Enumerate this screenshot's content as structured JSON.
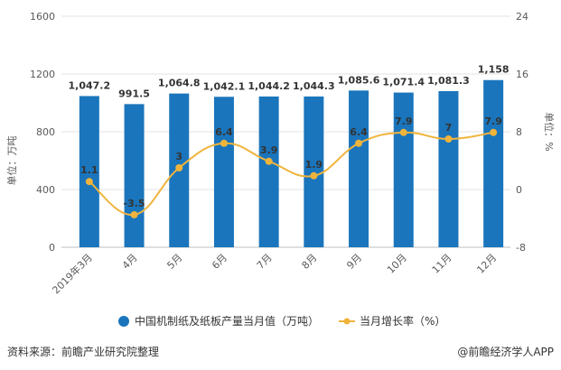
{
  "chart_data": {
    "type": "bar+line",
    "categories": [
      "2019年3月",
      "4月",
      "5月",
      "6月",
      "7月",
      "8月",
      "9月",
      "10月",
      "11月",
      "12月"
    ],
    "series": [
      {
        "name": "中国机制纸及纸板产量当月值（万吨）",
        "type": "bar",
        "axis": "left",
        "color": "#1a75bc",
        "values": [
          1047.2,
          991.5,
          1064.8,
          1042.1,
          1044.2,
          1044.3,
          1085.6,
          1071.4,
          1081.3,
          1158
        ],
        "labels": [
          "1,047.2",
          "991.5",
          "1,064.8",
          "1,042.1",
          "1,044.2",
          "1,044.3",
          "1,085.6",
          "1,071.4",
          "1,081.3",
          "1,158"
        ]
      },
      {
        "name": "当月增长率（%）",
        "type": "line",
        "axis": "right",
        "color": "#f0b43c",
        "values": [
          1.1,
          -3.5,
          3,
          6.4,
          3.9,
          1.9,
          6.4,
          7.9,
          7,
          7.9
        ],
        "labels": [
          "1.1",
          "-3.5",
          "3",
          "6.4",
          "3.9",
          "1.9",
          "6.4",
          "7.9",
          "7",
          "7.9"
        ]
      }
    ],
    "ylabel": "单位：万吨",
    "y2label": "单位：%",
    "ylim": [
      0,
      1600
    ],
    "y2lim": [
      -8,
      24
    ],
    "yticks": [
      0,
      400,
      800,
      1200,
      1600
    ],
    "y2ticks": [
      -8,
      0,
      8,
      16,
      24
    ],
    "grid": true,
    "legend": "bottom"
  },
  "footer": {
    "source": "资料来源：前瞻产业研究院整理",
    "credit": "@前瞻经济学人APP"
  }
}
